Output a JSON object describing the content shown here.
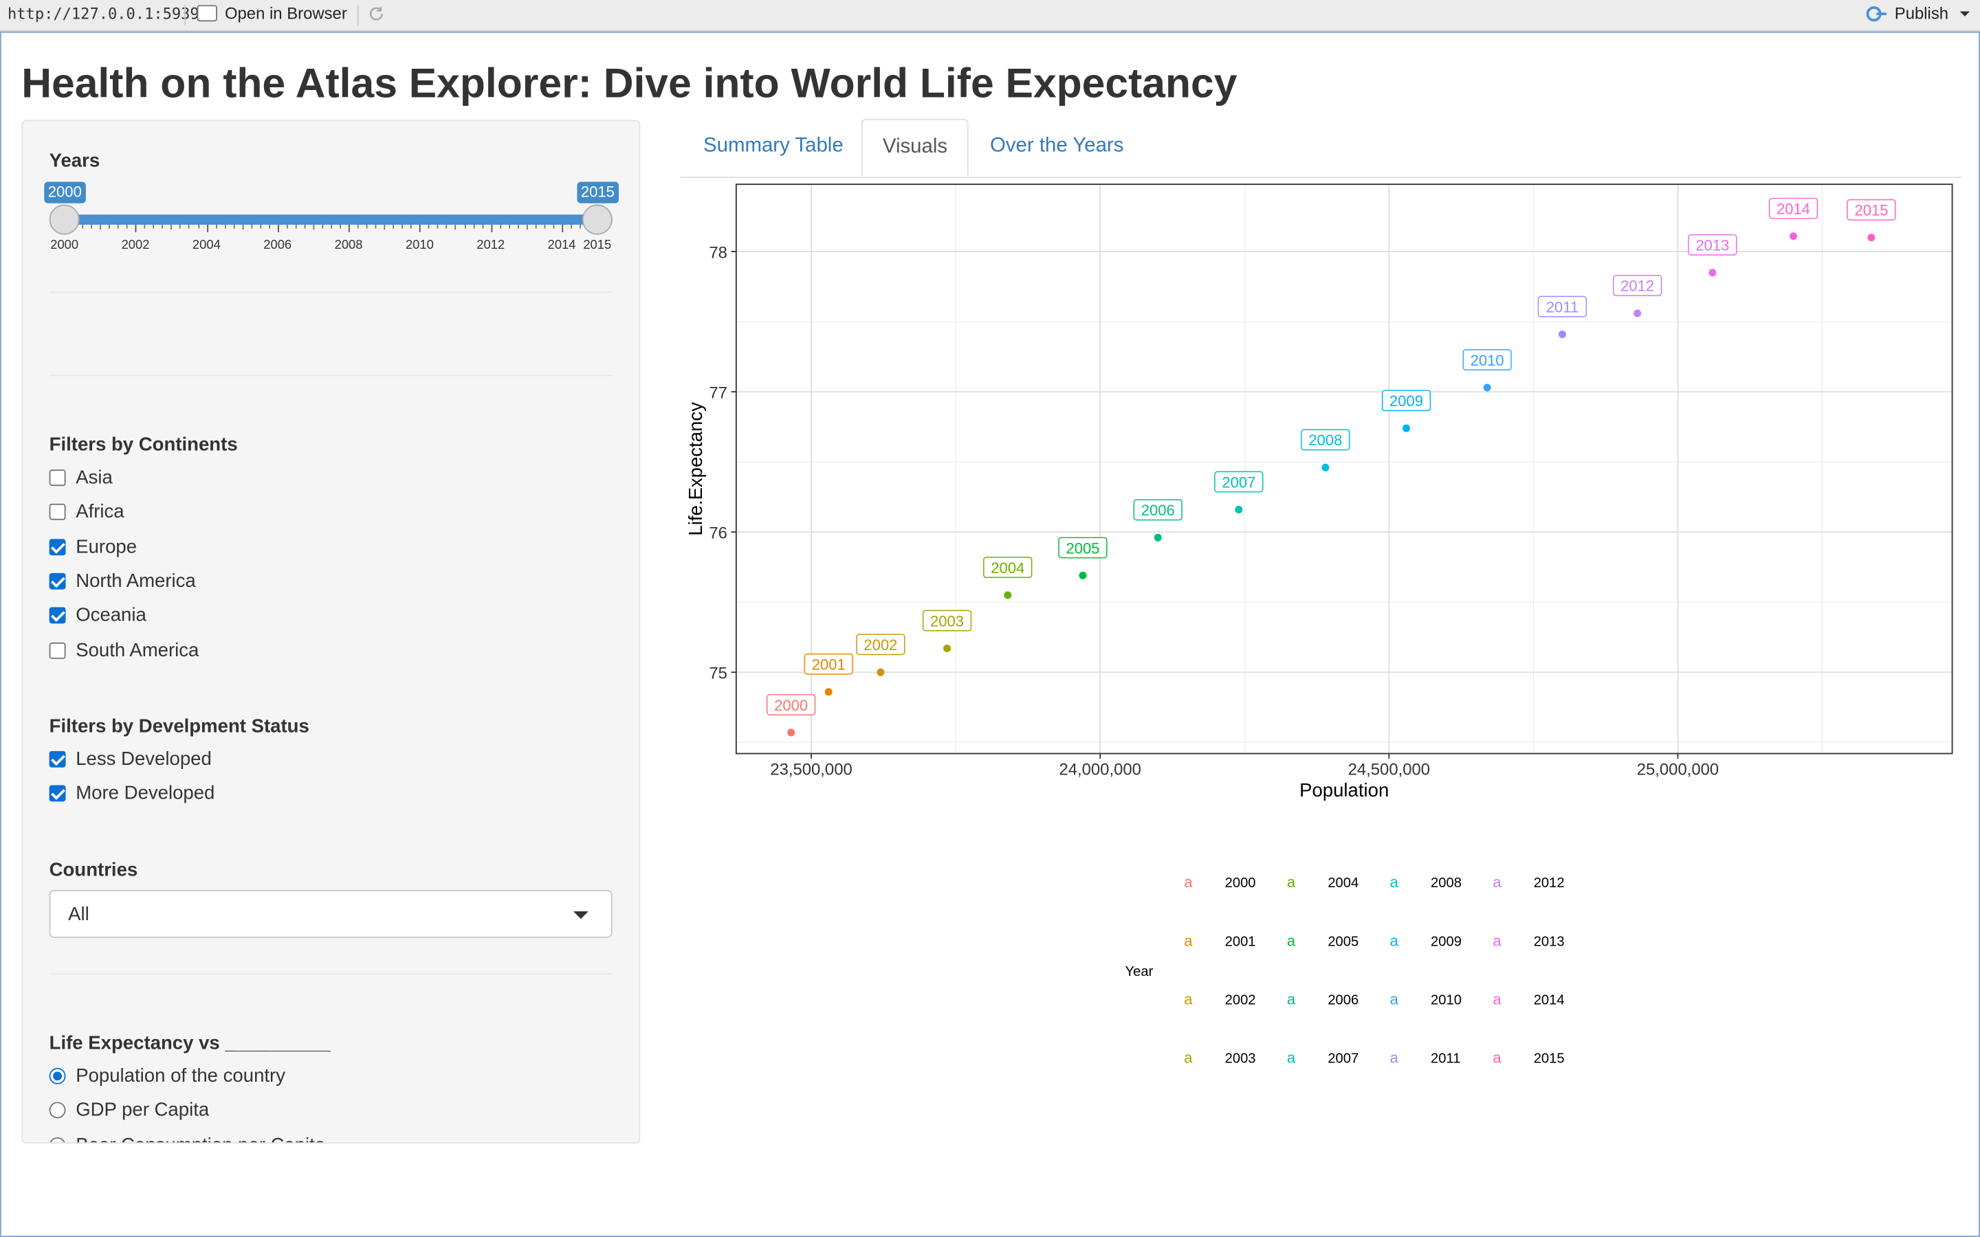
{
  "topbar": {
    "url": "http://127.0.0.1:5939",
    "open_in_browser": "Open in Browser",
    "publish": "Publish"
  },
  "app": {
    "title": "Health on the Atlas Explorer: Dive into World Life Expectancy"
  },
  "sidebar": {
    "years": {
      "label": "Years",
      "min": 2000,
      "max": 2015,
      "selected_from": "2000",
      "selected_to": "2015",
      "tick_labels": [
        "2000",
        "2002",
        "2004",
        "2006",
        "2008",
        "2010",
        "2012",
        "2014",
        "2015"
      ]
    },
    "continents": {
      "label": "Filters by Continents",
      "options": [
        {
          "label": "Asia",
          "checked": false
        },
        {
          "label": "Africa",
          "checked": false
        },
        {
          "label": "Europe",
          "checked": true
        },
        {
          "label": "North America",
          "checked": true
        },
        {
          "label": "Oceania",
          "checked": true
        },
        {
          "label": "South America",
          "checked": false
        }
      ]
    },
    "development": {
      "label": "Filters by Develpment Status",
      "options": [
        {
          "label": "Less Developed",
          "checked": true
        },
        {
          "label": "More Developed",
          "checked": true
        }
      ]
    },
    "countries": {
      "label": "Countries",
      "selected": "All"
    },
    "versus": {
      "label": "Life Expectancy vs __________",
      "options": [
        {
          "label": "Population of the country",
          "checked": true
        },
        {
          "label": "GDP per Capita",
          "checked": false
        },
        {
          "label": "Beer Consumption per Capita",
          "checked": false
        }
      ]
    }
  },
  "tabs": [
    {
      "label": "Summary Table",
      "active": false
    },
    {
      "label": "Visuals",
      "active": true
    },
    {
      "label": "Over the Years",
      "active": false
    }
  ],
  "chart_data": {
    "type": "scatter",
    "xlabel": "Population",
    "ylabel": "Life.Expectancy",
    "xlim": [
      23370000,
      25475000
    ],
    "ylim": [
      74.42,
      78.48
    ],
    "x_ticks": [
      23500000,
      24000000,
      24500000,
      25000000
    ],
    "x_tick_labels": [
      "23,500,000",
      "24,000,000",
      "24,500,000",
      "25,000,000"
    ],
    "y_ticks": [
      75,
      76,
      77,
      78
    ],
    "y_tick_labels": [
      "75",
      "76",
      "77",
      "78"
    ],
    "grid": true,
    "legend_title": "Year",
    "legend_position": "bottom",
    "legend_key_glyph": "a",
    "points": [
      {
        "year": "2000",
        "x": 23465000,
        "y": 74.57,
        "color": "#F8766D"
      },
      {
        "year": "2001",
        "x": 23530000,
        "y": 74.86,
        "color": "#E58700"
      },
      {
        "year": "2002",
        "x": 23620000,
        "y": 75.0,
        "color": "#C99800"
      },
      {
        "year": "2003",
        "x": 23735000,
        "y": 75.17,
        "color": "#A3A500"
      },
      {
        "year": "2004",
        "x": 23840000,
        "y": 75.55,
        "color": "#6BB100"
      },
      {
        "year": "2005",
        "x": 23970000,
        "y": 75.69,
        "color": "#00BA38"
      },
      {
        "year": "2006",
        "x": 24100000,
        "y": 75.96,
        "color": "#00BF7D"
      },
      {
        "year": "2007",
        "x": 24240000,
        "y": 76.16,
        "color": "#00C0AF"
      },
      {
        "year": "2008",
        "x": 24390000,
        "y": 76.46,
        "color": "#00BCD8"
      },
      {
        "year": "2009",
        "x": 24530000,
        "y": 76.74,
        "color": "#00B0F6"
      },
      {
        "year": "2010",
        "x": 24670000,
        "y": 77.03,
        "color": "#35A2FF"
      },
      {
        "year": "2011",
        "x": 24800000,
        "y": 77.41,
        "color": "#9590FF"
      },
      {
        "year": "2012",
        "x": 24930000,
        "y": 77.56,
        "color": "#C77CFF"
      },
      {
        "year": "2013",
        "x": 25060000,
        "y": 77.85,
        "color": "#E76BF3"
      },
      {
        "year": "2014",
        "x": 25200000,
        "y": 78.11,
        "color": "#FA62DB"
      },
      {
        "year": "2015",
        "x": 25335000,
        "y": 78.1,
        "color": "#FF62BC"
      }
    ]
  }
}
